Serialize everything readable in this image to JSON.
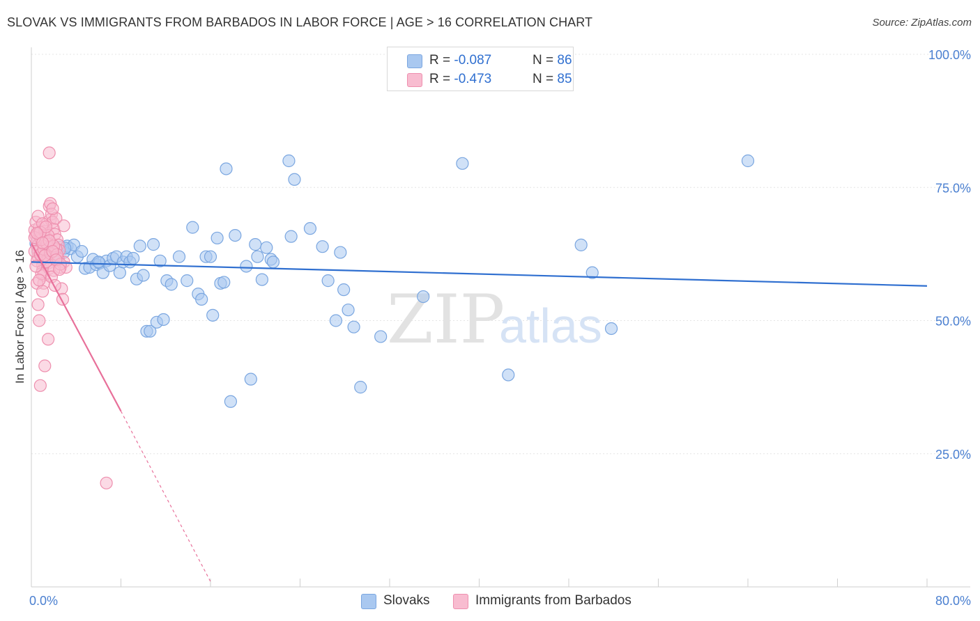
{
  "header": {
    "title": "SLOVAK VS IMMIGRANTS FROM BARBADOS IN LABOR FORCE | AGE > 16 CORRELATION CHART",
    "source": "Source: ZipAtlas.com"
  },
  "watermark": {
    "zip": "ZIP",
    "atlas": "atlas"
  },
  "legend": {
    "rows": [
      {
        "r_label": "R = ",
        "r_value": "-0.087",
        "n_label": "N = ",
        "n_value": "86",
        "color": "#a9c8f0",
        "border": "#7aa6e0"
      },
      {
        "r_label": "R = ",
        "r_value": "-0.473",
        "n_label": "N = ",
        "n_value": "85",
        "color": "#f8bcd0",
        "border": "#ee8fae"
      }
    ]
  },
  "bottom_legend": {
    "items": [
      {
        "label": "Slovaks",
        "color": "#a9c8f0",
        "border": "#7aa6e0"
      },
      {
        "label": "Immigrants from Barbados",
        "color": "#f8bcd0",
        "border": "#ee8fae"
      }
    ]
  },
  "chart_data": {
    "type": "scatter",
    "title": "SLOVAK VS IMMIGRANTS FROM BARBADOS IN LABOR FORCE | AGE > 16 CORRELATION CHART",
    "xlabel": "",
    "ylabel": "In Labor Force | Age > 16",
    "xlim": [
      0,
      80
    ],
    "ylim": [
      0,
      100
    ],
    "x_tick_labels": [
      "0.0%",
      "80.0%"
    ],
    "y_tick_labels": [
      "100.0%",
      "75.0%",
      "50.0%",
      "25.0%"
    ],
    "y_ticks": [
      100,
      75,
      50,
      25
    ],
    "grid": true,
    "series": [
      {
        "name": "Slovaks",
        "color": "#7aa6e0",
        "fill": "#a9c8f0",
        "line_color": "#2f6fd0",
        "trend": {
          "x0": 0,
          "y0": 61.0,
          "x1": 80,
          "y1": 56.5,
          "dashed_from": null
        },
        "points": [
          [
            0.4,
            64.5
          ],
          [
            0.6,
            63.0
          ],
          [
            0.9,
            62.5
          ],
          [
            1.1,
            62.0
          ],
          [
            1.3,
            63.5
          ],
          [
            1.6,
            63.8
          ],
          [
            1.8,
            63.2
          ],
          [
            2.0,
            62.3
          ],
          [
            2.3,
            61.7
          ],
          [
            2.6,
            63.8
          ],
          [
            2.9,
            62.8
          ],
          [
            3.2,
            64.0
          ],
          [
            3.5,
            63.5
          ],
          [
            3.8,
            64.2
          ],
          [
            4.1,
            62.0
          ],
          [
            4.5,
            63.0
          ],
          [
            4.8,
            59.8
          ],
          [
            5.2,
            60.0
          ],
          [
            5.5,
            61.5
          ],
          [
            5.8,
            60.5
          ],
          [
            6.1,
            60.8
          ],
          [
            6.4,
            59.0
          ],
          [
            6.7,
            61.2
          ],
          [
            7.0,
            60.3
          ],
          [
            7.3,
            61.7
          ],
          [
            7.6,
            62.0
          ],
          [
            7.9,
            59.0
          ],
          [
            8.2,
            61.0
          ],
          [
            8.5,
            62.0
          ],
          [
            8.8,
            61.0
          ],
          [
            9.1,
            61.7
          ],
          [
            9.4,
            57.8
          ],
          [
            9.7,
            64.0
          ],
          [
            10.0,
            58.5
          ],
          [
            10.3,
            48.0
          ],
          [
            10.6,
            48.0
          ],
          [
            10.9,
            64.3
          ],
          [
            11.2,
            49.7
          ],
          [
            11.5,
            61.2
          ],
          [
            11.8,
            50.2
          ],
          [
            12.1,
            57.5
          ],
          [
            12.5,
            56.8
          ],
          [
            13.2,
            62.0
          ],
          [
            13.9,
            57.5
          ],
          [
            14.4,
            67.5
          ],
          [
            14.9,
            55.0
          ],
          [
            15.2,
            54.0
          ],
          [
            15.6,
            62.0
          ],
          [
            16.0,
            62.0
          ],
          [
            16.2,
            51.0
          ],
          [
            16.6,
            65.5
          ],
          [
            16.9,
            57.0
          ],
          [
            17.2,
            57.2
          ],
          [
            17.4,
            78.5
          ],
          [
            17.8,
            34.8
          ],
          [
            18.2,
            66.0
          ],
          [
            19.2,
            60.2
          ],
          [
            19.6,
            39.0
          ],
          [
            20.0,
            64.3
          ],
          [
            20.2,
            62.0
          ],
          [
            20.6,
            57.7
          ],
          [
            21.0,
            63.7
          ],
          [
            21.4,
            61.5
          ],
          [
            21.6,
            61.0
          ],
          [
            23.0,
            80.0
          ],
          [
            23.2,
            65.8
          ],
          [
            23.5,
            76.5
          ],
          [
            24.9,
            67.3
          ],
          [
            26.0,
            63.9
          ],
          [
            26.5,
            57.5
          ],
          [
            27.2,
            50.0
          ],
          [
            27.6,
            62.8
          ],
          [
            27.9,
            55.8
          ],
          [
            28.3,
            52.0
          ],
          [
            28.8,
            48.8
          ],
          [
            29.4,
            37.5
          ],
          [
            31.2,
            47.0
          ],
          [
            35.0,
            54.5
          ],
          [
            38.5,
            79.5
          ],
          [
            42.6,
            39.8
          ],
          [
            49.1,
            64.2
          ],
          [
            50.1,
            59.0
          ],
          [
            51.8,
            48.5
          ],
          [
            64.0,
            80.0
          ],
          [
            6.0,
            61.0
          ],
          [
            3.0,
            63.6
          ]
        ]
      },
      {
        "name": "Immigrants from Barbados",
        "color": "#ee8fae",
        "fill": "#f8bcd0",
        "line_color": "#e8709a",
        "trend": {
          "x0": 0,
          "y0": 64.5,
          "x1": 8.0,
          "y1": 33.0,
          "dashed_to_x": 16.0,
          "dashed_to_y": 1.0
        },
        "points": [
          [
            0.3,
            67.0
          ],
          [
            0.4,
            66.0
          ],
          [
            0.5,
            65.0
          ],
          [
            0.5,
            64.0
          ],
          [
            0.6,
            63.0
          ],
          [
            0.6,
            62.0
          ],
          [
            0.7,
            67.5
          ],
          [
            0.7,
            66.5
          ],
          [
            0.8,
            65.5
          ],
          [
            0.8,
            63.5
          ],
          [
            0.9,
            62.5
          ],
          [
            0.9,
            61.5
          ],
          [
            1.0,
            60.5
          ],
          [
            1.0,
            59.5
          ],
          [
            1.1,
            58.5
          ],
          [
            1.1,
            57.0
          ],
          [
            1.2,
            68.0
          ],
          [
            1.2,
            66.8
          ],
          [
            1.3,
            65.8
          ],
          [
            1.3,
            64.8
          ],
          [
            1.4,
            63.8
          ],
          [
            1.4,
            62.8
          ],
          [
            1.5,
            61.8
          ],
          [
            1.5,
            60.8
          ],
          [
            1.6,
            59.8
          ],
          [
            1.6,
            71.5
          ],
          [
            1.7,
            72.0
          ],
          [
            1.7,
            69.0
          ],
          [
            1.8,
            70.0
          ],
          [
            1.9,
            68.5
          ],
          [
            2.0,
            67.2
          ],
          [
            2.1,
            66.2
          ],
          [
            2.2,
            69.2
          ],
          [
            2.3,
            65.2
          ],
          [
            2.4,
            64.2
          ],
          [
            2.5,
            63.2
          ],
          [
            2.6,
            60.0
          ],
          [
            2.7,
            56.0
          ],
          [
            2.8,
            54.0
          ],
          [
            2.9,
            67.8
          ],
          [
            0.4,
            68.5
          ],
          [
            0.5,
            57.0
          ],
          [
            0.6,
            53.0
          ],
          [
            0.7,
            50.0
          ],
          [
            0.8,
            37.8
          ],
          [
            1.2,
            41.5
          ],
          [
            1.5,
            46.5
          ],
          [
            1.6,
            81.5
          ],
          [
            1.9,
            71.0
          ],
          [
            2.2,
            63.5
          ],
          [
            2.9,
            61.0
          ],
          [
            3.1,
            60.0
          ],
          [
            1.0,
            55.5
          ],
          [
            0.9,
            58.8
          ],
          [
            1.3,
            61.0
          ],
          [
            0.3,
            63.0
          ],
          [
            0.5,
            61.2
          ],
          [
            0.8,
            62.4
          ],
          [
            1.1,
            63.4
          ],
          [
            1.4,
            64.4
          ],
          [
            1.7,
            62.6
          ],
          [
            2.0,
            59.4
          ],
          [
            0.6,
            69.6
          ],
          [
            0.9,
            65.2
          ],
          [
            1.2,
            62.2
          ],
          [
            1.8,
            58.2
          ],
          [
            2.1,
            56.6
          ],
          [
            2.4,
            61.6
          ],
          [
            0.4,
            60.2
          ],
          [
            0.7,
            57.6
          ],
          [
            1.0,
            68.2
          ],
          [
            1.5,
            66.0
          ],
          [
            2.0,
            64.0
          ],
          [
            2.3,
            62.4
          ],
          [
            2.6,
            60.6
          ],
          [
            0.3,
            65.6
          ],
          [
            0.8,
            66.6
          ],
          [
            1.3,
            67.6
          ],
          [
            1.6,
            65.0
          ],
          [
            1.9,
            63.0
          ],
          [
            2.2,
            61.4
          ],
          [
            2.5,
            59.6
          ],
          [
            0.5,
            66.4
          ],
          [
            1.0,
            64.6
          ],
          [
            6.7,
            19.5
          ]
        ]
      }
    ]
  }
}
